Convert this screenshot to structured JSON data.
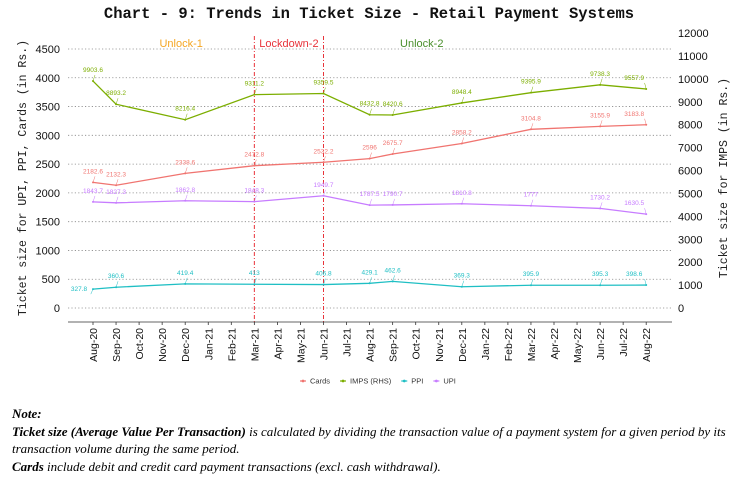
{
  "chart_data": {
    "type": "line",
    "title": "Chart - 9: Trends in Ticket Size - Retail Payment Systems",
    "xlabel": "",
    "ylabel": "Ticket size for UPI, PPI, Cards (in Rs.)",
    "ylabel_right": "Ticket size for IMPS (in Rs.)",
    "ylim": [
      0,
      4500
    ],
    "ylim_right": [
      0,
      12000
    ],
    "yticks": [
      "0",
      "500",
      "1000",
      "1500",
      "2000",
      "2500",
      "3000",
      "3500",
      "4000",
      "4500"
    ],
    "yticks_right": [
      "0",
      "1000",
      "2000",
      "3000",
      "4000",
      "5000",
      "6000",
      "7000",
      "8000",
      "9000",
      "10000",
      "11000",
      "12000"
    ],
    "grid": true,
    "legend_position": "bottom",
    "x_ticks": [
      "Aug-20",
      "Sep-20",
      "Oct-20",
      "Nov-20",
      "Dec-20",
      "Jan-21",
      "Feb-21",
      "Mar-21",
      "Apr-21",
      "May-21",
      "Jun-21",
      "Jul-21",
      "Aug-21",
      "Sep-21",
      "Oct-21",
      "Nov-21",
      "Dec-21",
      "Jan-22",
      "Feb-22",
      "Mar-22",
      "Apr-22",
      "May-22",
      "Jun-22",
      "Jul-22",
      "Aug-22"
    ],
    "x": [
      "Aug-20",
      "Sep-20",
      "Dec-20",
      "Mar-21",
      "Jun-21",
      "Aug-21",
      "Sep-21",
      "Dec-21",
      "Mar-22",
      "Jun-22",
      "Aug-22"
    ],
    "series": [
      {
        "name": "Cards",
        "axis": "left",
        "color": "#f07470",
        "values": [
          2182.6,
          2132.3,
          2338.6,
          2472.8,
          2532.2,
          2596,
          2675.7,
          2858.2,
          3104.8,
          3155.9,
          3183.8
        ],
        "labels": [
          "2182.6",
          "2132.3",
          "2338.6",
          "2472.8",
          "2532.2",
          "2596",
          "2675.7",
          "2858.2",
          "3104.8",
          "3155.9",
          "3183.8"
        ]
      },
      {
        "name": "IMPS (RHS)",
        "axis": "right",
        "color": "#7cae00",
        "values": [
          9903.6,
          8893.2,
          8216.4,
          9311.2,
          9359.5,
          8432.8,
          8420.6,
          8948.4,
          9395.9,
          9738.3,
          9557.9
        ],
        "labels": [
          "9903.6",
          "8893.2",
          "8216.4",
          "9311.2",
          "9359.5",
          "8432.8",
          "8420.6",
          "8948.4",
          "9395.9",
          "9738.3",
          "9557.9"
        ]
      },
      {
        "name": "PPI",
        "axis": "left",
        "color": "#1fbfc4",
        "values": [
          327.8,
          360.6,
          419.4,
          413,
          406.8,
          429.1,
          462.6,
          369.3,
          395.9,
          395.3,
          398.6
        ],
        "labels": [
          "327.8",
          "360.6",
          "419.4",
          "413",
          "406.8",
          "429.1",
          "462.6",
          "369.3",
          "395.9",
          "395.3",
          "398.6"
        ]
      },
      {
        "name": "UPI",
        "axis": "left",
        "color": "#c77cff",
        "values": [
          1843.7,
          1827.3,
          1862.8,
          1848.3,
          1949.7,
          1787.5,
          1790.7,
          1810.8,
          1777,
          1730.2,
          1630.5
        ],
        "labels": [
          "1843.7",
          "1827.3",
          "1862.8",
          "1848.3",
          "1949.7",
          "1787.5",
          "1790.7",
          "1810.8",
          "1777",
          "1730.2",
          "1630.5"
        ]
      }
    ],
    "annotations": [
      {
        "text": "Unlock-1",
        "color": "#f5a623"
      },
      {
        "text": "Lockdown-2",
        "color": "#e8333a"
      },
      {
        "text": "Unlock-2",
        "color": "#4a8f2c"
      }
    ],
    "phase_boundaries": [
      "Mar-21",
      "Jun-21"
    ]
  },
  "note": {
    "heading": "Note:",
    "line1_bold": "Ticket size (Average Value Per Transaction)",
    "line1_rest": " is calculated by dividing the transaction value of a payment system for a given period by its transaction volume during the same period.",
    "line2_bold": "Cards",
    "line2_rest": " include debit and credit card payment transactions (excl. cash withdrawal)."
  }
}
